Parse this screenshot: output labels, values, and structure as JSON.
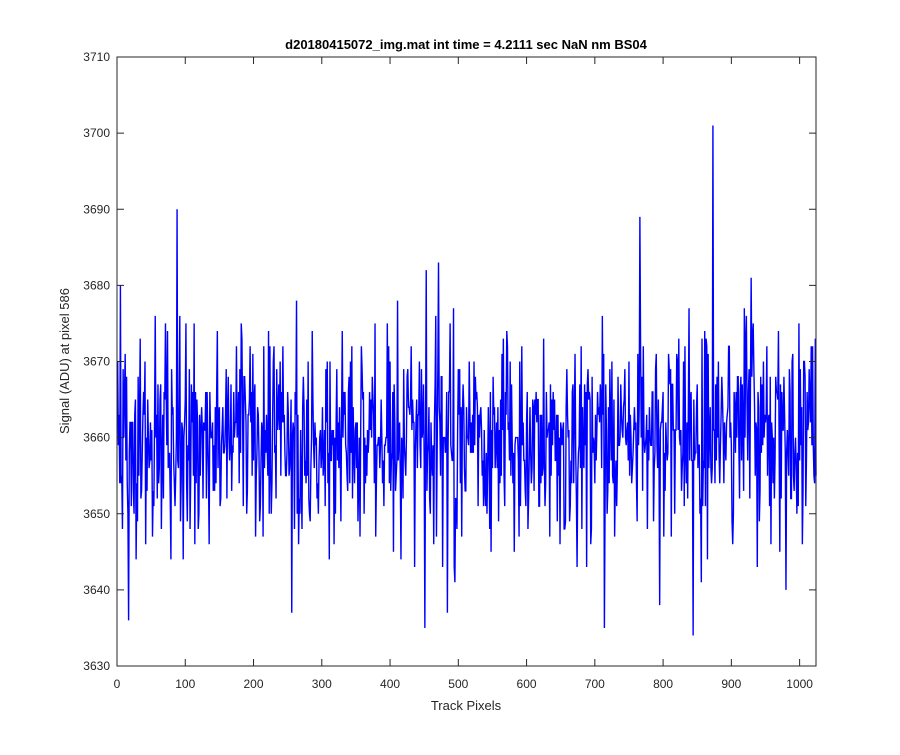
{
  "chart_data": {
    "type": "line",
    "title": "d20180415072_img.mat int time = 4.2111 sec  NaN nm BS04",
    "xlabel": "Track Pixels",
    "ylabel": "Signal (ADU) at pixel 586",
    "xlim": [
      0,
      1024
    ],
    "ylim": [
      3630,
      3710
    ],
    "xticks": [
      0,
      100,
      200,
      300,
      400,
      500,
      600,
      700,
      800,
      900,
      1000
    ],
    "yticks": [
      3630,
      3640,
      3650,
      3660,
      3670,
      3680,
      3690,
      3700,
      3710
    ],
    "grid": false,
    "legend": "none",
    "line_color": "#0000ff",
    "axes_color": "#262626",
    "series": [
      {
        "n_points": 1024,
        "mean": 3660,
        "std": 7,
        "trace_min": 3634,
        "trace_max": 3701,
        "notable_points": [
          {
            "x": 16,
            "y": 3636
          },
          {
            "x": 87,
            "y": 3690
          },
          {
            "x": 255,
            "y": 3637
          },
          {
            "x": 450,
            "y": 3635
          },
          {
            "x": 470,
            "y": 3683
          },
          {
            "x": 713,
            "y": 3635
          },
          {
            "x": 765,
            "y": 3689
          },
          {
            "x": 843,
            "y": 3634
          },
          {
            "x": 872,
            "y": 3701
          },
          {
            "x": 1003,
            "y": 3646
          }
        ]
      }
    ]
  }
}
